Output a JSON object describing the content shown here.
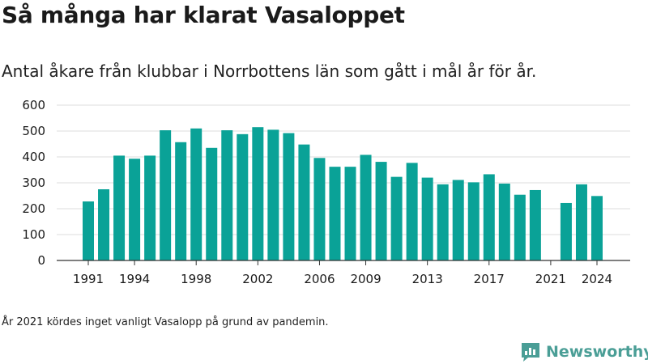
{
  "title": "Så många har klarat Vasaloppet",
  "subtitle": "Antal åkare från klubbar i Norrbottens län som gått i mål år för år.",
  "note": "År 2021 kördes inget vanligt Vasalopp på grund av pandemin.",
  "brand": {
    "name": "Newsworthy",
    "icon": "newsworthy-logo-icon"
  },
  "colors": {
    "bar": "#0aa297",
    "grid": "#dedede",
    "axis": "#333333",
    "text": "#1a1a1a"
  },
  "chart_data": {
    "type": "bar",
    "categories": [
      1991,
      1992,
      1993,
      1994,
      1995,
      1996,
      1997,
      1998,
      1999,
      2000,
      2001,
      2002,
      2003,
      2004,
      2005,
      2006,
      2007,
      2008,
      2009,
      2010,
      2011,
      2012,
      2013,
      2014,
      2015,
      2016,
      2017,
      2018,
      2019,
      2020,
      2021,
      2022,
      2023,
      2024
    ],
    "values": [
      228,
      275,
      405,
      393,
      405,
      503,
      457,
      510,
      435,
      503,
      488,
      515,
      505,
      492,
      448,
      396,
      362,
      362,
      408,
      381,
      323,
      377,
      320,
      294,
      311,
      302,
      333,
      297,
      254,
      272,
      null,
      222,
      294,
      249
    ],
    "xticks": [
      "1991",
      "1994",
      "1998",
      "2002",
      "2006",
      "2009",
      "2013",
      "2017",
      "2021",
      "2024"
    ],
    "yticks": [
      "0",
      "100",
      "200",
      "300",
      "400",
      "500",
      "600"
    ],
    "ylim": [
      0,
      600
    ],
    "grid": true,
    "xlabel": "",
    "ylabel": ""
  }
}
